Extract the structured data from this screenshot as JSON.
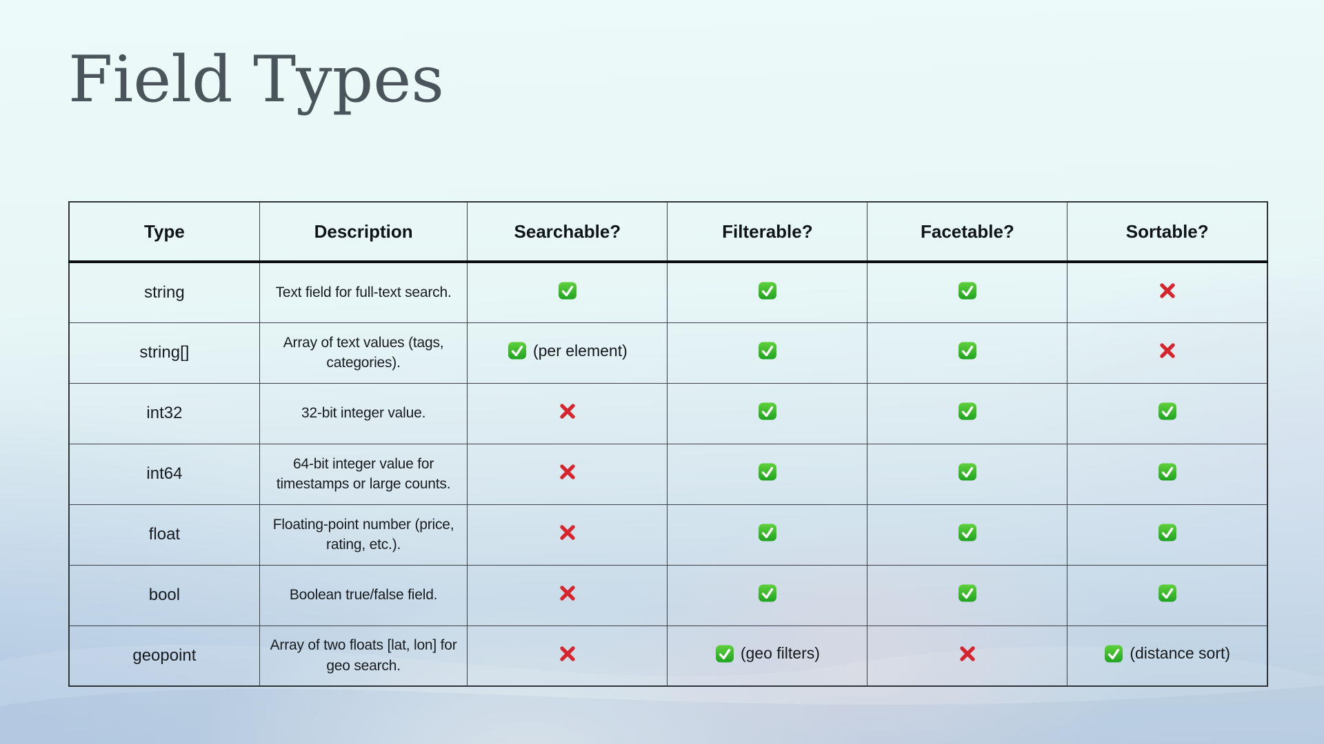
{
  "slide": {
    "title": "Field Types"
  },
  "table": {
    "columns": [
      "Type",
      "Description",
      "Searchable?",
      "Filterable?",
      "Facetable?",
      "Sortable?"
    ],
    "mark_column_keys": [
      "searchable",
      "filterable",
      "facetable",
      "sortable"
    ],
    "rows": [
      {
        "type": "string",
        "description": "Text field for full-text search.",
        "marks": [
          {
            "icon": "check",
            "note": ""
          },
          {
            "icon": "check",
            "note": ""
          },
          {
            "icon": "check",
            "note": ""
          },
          {
            "icon": "cross",
            "note": ""
          }
        ]
      },
      {
        "type": "string[]",
        "description": "Array of text values (tags, categories).",
        "marks": [
          {
            "icon": "check",
            "note": "(per element)"
          },
          {
            "icon": "check",
            "note": ""
          },
          {
            "icon": "check",
            "note": ""
          },
          {
            "icon": "cross",
            "note": ""
          }
        ]
      },
      {
        "type": "int32",
        "description": "32-bit integer value.",
        "marks": [
          {
            "icon": "cross",
            "note": ""
          },
          {
            "icon": "check",
            "note": ""
          },
          {
            "icon": "check",
            "note": ""
          },
          {
            "icon": "check",
            "note": ""
          }
        ]
      },
      {
        "type": "int64",
        "description": "64-bit integer value for timestamps or large counts.",
        "marks": [
          {
            "icon": "cross",
            "note": ""
          },
          {
            "icon": "check",
            "note": ""
          },
          {
            "icon": "check",
            "note": ""
          },
          {
            "icon": "check",
            "note": ""
          }
        ]
      },
      {
        "type": "float",
        "description": "Floating-point number (price, rating, etc.).",
        "marks": [
          {
            "icon": "cross",
            "note": ""
          },
          {
            "icon": "check",
            "note": ""
          },
          {
            "icon": "check",
            "note": ""
          },
          {
            "icon": "check",
            "note": ""
          }
        ]
      },
      {
        "type": "bool",
        "description": "Boolean true/false field.",
        "marks": [
          {
            "icon": "cross",
            "note": ""
          },
          {
            "icon": "check",
            "note": ""
          },
          {
            "icon": "check",
            "note": ""
          },
          {
            "icon": "check",
            "note": ""
          }
        ]
      },
      {
        "type": "geopoint",
        "description": "Array of two floats [lat, lon] for geo search.",
        "marks": [
          {
            "icon": "cross",
            "note": ""
          },
          {
            "icon": "check",
            "note": "(geo filters)"
          },
          {
            "icon": "cross",
            "note": ""
          },
          {
            "icon": "check",
            "note": "(distance sort)"
          }
        ]
      }
    ]
  },
  "icons": {
    "check": "check-icon",
    "cross": "cross-icon"
  },
  "colors": {
    "title_text": "#4a555b",
    "table_border": "#2e3338",
    "header_underline": "#0b0e11",
    "cell_text": "#161b1f",
    "check_green_top": "#5fd13c",
    "check_green_bottom": "#1fa321",
    "cross_red": "#d6252d",
    "background_top": "#ecfaf9",
    "background_bottom": "#b9cfe1"
  }
}
